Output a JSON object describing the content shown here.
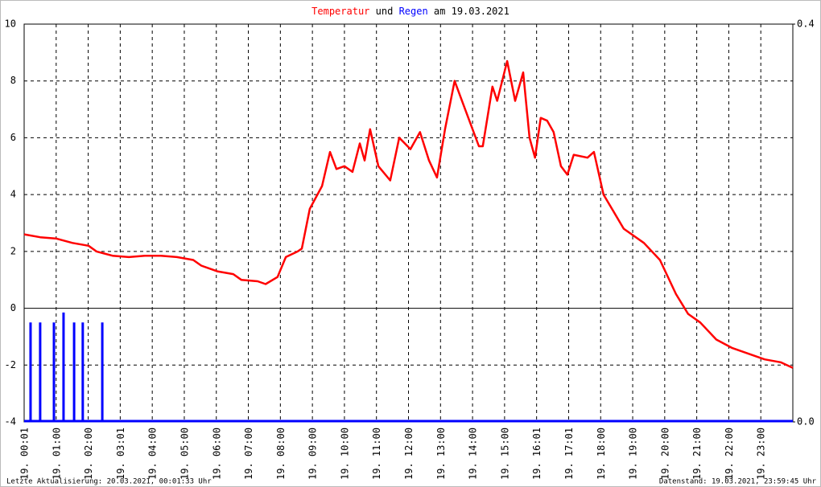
{
  "chart_data": {
    "type": "line",
    "title": [
      "Temperatur",
      "und",
      "Regen",
      "am 19.03.2021"
    ],
    "footer_left": "Letzte Aktualisierung: 20.03.2021, 00:01:33 Uhr",
    "footer_right": "Datenstand: 19.03.2021, 23:59:45 Uhr",
    "grid": true,
    "xlim": [
      0,
      24
    ],
    "xticks": [
      {
        "value": 0,
        "label": "19. 00:01"
      },
      {
        "value": 1,
        "label": "19. 01:00"
      },
      {
        "value": 2,
        "label": "19. 02:00"
      },
      {
        "value": 3,
        "label": "19. 03:01"
      },
      {
        "value": 4,
        "label": "19. 04:00"
      },
      {
        "value": 5,
        "label": "19. 05:00"
      },
      {
        "value": 6,
        "label": "19. 06:00"
      },
      {
        "value": 7,
        "label": "19. 07:00"
      },
      {
        "value": 8,
        "label": "19. 08:00"
      },
      {
        "value": 9,
        "label": "19. 09:00"
      },
      {
        "value": 10,
        "label": "19. 10:00"
      },
      {
        "value": 11,
        "label": "19. 11:00"
      },
      {
        "value": 12,
        "label": "19. 12:00"
      },
      {
        "value": 13,
        "label": "19. 13:00"
      },
      {
        "value": 14,
        "label": "19. 14:00"
      },
      {
        "value": 15,
        "label": "19. 15:00"
      },
      {
        "value": 16,
        "label": "19. 16:01"
      },
      {
        "value": 17,
        "label": "19. 17:01"
      },
      {
        "value": 18,
        "label": "19. 18:00"
      },
      {
        "value": 19,
        "label": "19. 19:00"
      },
      {
        "value": 20,
        "label": "19. 20:00"
      },
      {
        "value": 21,
        "label": "19. 21:00"
      },
      {
        "value": 22,
        "label": "19. 22:00"
      },
      {
        "value": 23,
        "label": "19. 23:00"
      }
    ],
    "ylim": [
      -4,
      10
    ],
    "yticks": [
      10,
      8,
      6,
      4,
      2,
      0,
      -2,
      -4
    ],
    "y2lim": [
      0,
      0.4
    ],
    "y2ticks": [
      0.4,
      {
        "value": 0,
        "label": "0.0"
      }
    ],
    "series": [
      {
        "name": "Temperatur",
        "color": "#ff0000",
        "x": [
          0,
          0.5,
          1.01,
          1.51,
          2.01,
          2.26,
          2.76,
          3.27,
          3.77,
          4.27,
          4.77,
          5.28,
          5.53,
          6.03,
          6.53,
          6.78,
          7.29,
          7.54,
          7.91,
          8.17,
          8.54,
          8.67,
          8.92,
          9.3,
          9.55,
          9.75,
          10.0,
          10.25,
          10.48,
          10.63,
          10.8,
          11.06,
          11.43,
          11.71,
          12.06,
          12.36,
          12.64,
          12.89,
          13.14,
          13.44,
          13.77,
          14.2,
          14.32,
          14.62,
          14.77,
          15.08,
          15.33,
          15.58,
          15.78,
          15.95,
          16.13,
          16.33,
          16.53,
          16.76,
          16.96,
          17.16,
          17.59,
          17.79,
          18.09,
          18.72,
          19.35,
          19.85,
          20.35,
          20.73,
          21.11,
          21.61,
          22.11,
          22.61,
          23.12,
          23.62,
          24.0
        ],
        "values": [
          2.6,
          2.5,
          2.45,
          2.3,
          2.2,
          2.0,
          1.85,
          1.8,
          1.85,
          1.85,
          1.8,
          1.7,
          1.5,
          1.3,
          1.2,
          1.0,
          0.95,
          0.85,
          1.1,
          1.8,
          2.0,
          2.1,
          3.5,
          4.3,
          5.5,
          4.9,
          5.0,
          4.8,
          5.8,
          5.2,
          6.3,
          5.0,
          4.5,
          6.0,
          5.6,
          6.2,
          5.2,
          4.6,
          6.3,
          8.0,
          7.0,
          5.7,
          5.7,
          7.8,
          7.3,
          8.7,
          7.3,
          8.3,
          6.0,
          5.3,
          6.7,
          6.6,
          6.2,
          5.0,
          4.7,
          5.4,
          5.3,
          5.5,
          4.0,
          2.8,
          2.3,
          1.7,
          0.5,
          -0.2,
          -0.5,
          -1.1,
          -1.4,
          -1.6,
          -1.8,
          -1.9,
          -2.1
        ]
      },
      {
        "name": "Regen",
        "color": "#0000ff",
        "axis": "y2",
        "x": [
          0.2,
          0.5,
          0.93,
          1.23,
          1.56,
          1.83,
          2.44
        ],
        "values": [
          0.1,
          0.1,
          0.1,
          0.11,
          0.1,
          0.1,
          0.1
        ]
      }
    ]
  }
}
